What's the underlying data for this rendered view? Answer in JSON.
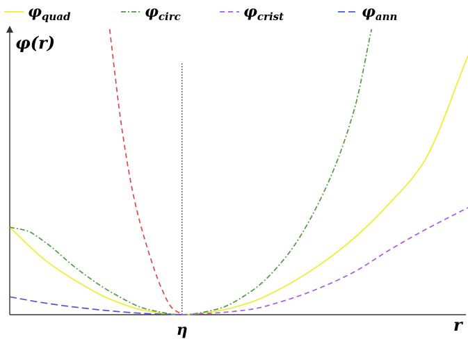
{
  "chart_data": {
    "type": "line",
    "title": "",
    "ylabel": {
      "main": "φ",
      "rest": "(r)"
    },
    "xlabel": "r",
    "x_ticks": [
      {
        "x": 0,
        "label": "η"
      }
    ],
    "reference_line": {
      "x": 0,
      "style": "dotted",
      "color": "#555555"
    },
    "xlim": [
      -1,
      1.66
    ],
    "ylim": [
      0,
      1.6
    ],
    "grid": false,
    "legend_position": "top",
    "series": [
      {
        "name": "quad",
        "symbol": "φ",
        "subscript": "quad",
        "color": "#f2ec2a",
        "dash": "",
        "width": 1.7,
        "x": [
          -1,
          -0.8,
          -0.6,
          -0.4,
          -0.2,
          0,
          0.2,
          0.4,
          0.6,
          0.8,
          1.0,
          1.2,
          1.4,
          1.66
        ],
        "y": [
          0.49,
          0.31,
          0.18,
          0.08,
          0.02,
          0,
          0.02,
          0.07,
          0.16,
          0.28,
          0.43,
          0.62,
          0.85,
          1.45
        ]
      },
      {
        "name": "circ",
        "symbol": "φ",
        "subscript": "circ",
        "color": "#4f9a3c",
        "dash": "7,3,2,3",
        "width": 1.7,
        "x": [
          -1,
          -0.9,
          -0.8,
          -0.6,
          -0.4,
          -0.2,
          0,
          0.2,
          0.4,
          0.6,
          0.8,
          1.0,
          1.1
        ],
        "y": [
          0.49,
          0.47,
          0.41,
          0.25,
          0.12,
          0.03,
          0,
          0.03,
          0.13,
          0.32,
          0.64,
          1.15,
          1.6
        ]
      },
      {
        "name": "crist",
        "symbol": "φ",
        "subscript": "crist",
        "color": "#a855f0",
        "dash": "7,5",
        "width": 1.7,
        "x": [
          -0.42,
          -0.35,
          -0.28,
          -0.2,
          -0.12,
          -0.06,
          0,
          0.2,
          0.4,
          0.6,
          0.8,
          1.0,
          1.2,
          1.4,
          1.66
        ],
        "y": [
          1.6,
          1.05,
          0.66,
          0.37,
          0.15,
          0.04,
          0,
          0.01,
          0.03,
          0.08,
          0.15,
          0.24,
          0.36,
          0.47,
          0.6
        ],
        "segments": [
          {
            "from": -0.42,
            "to": 0,
            "color": "#e04848"
          },
          {
            "from": 0,
            "to": 1.66,
            "color": "#a855f0"
          }
        ]
      },
      {
        "name": "ann",
        "symbol": "φ",
        "subscript": "ann",
        "color": "#4a52e8",
        "dash": "10,5",
        "width": 1.7,
        "x": [
          -1,
          -0.8,
          -0.6,
          -0.4,
          -0.2,
          0
        ],
        "y": [
          0.1,
          0.066,
          0.04,
          0.02,
          0.006,
          0
        ]
      }
    ]
  }
}
